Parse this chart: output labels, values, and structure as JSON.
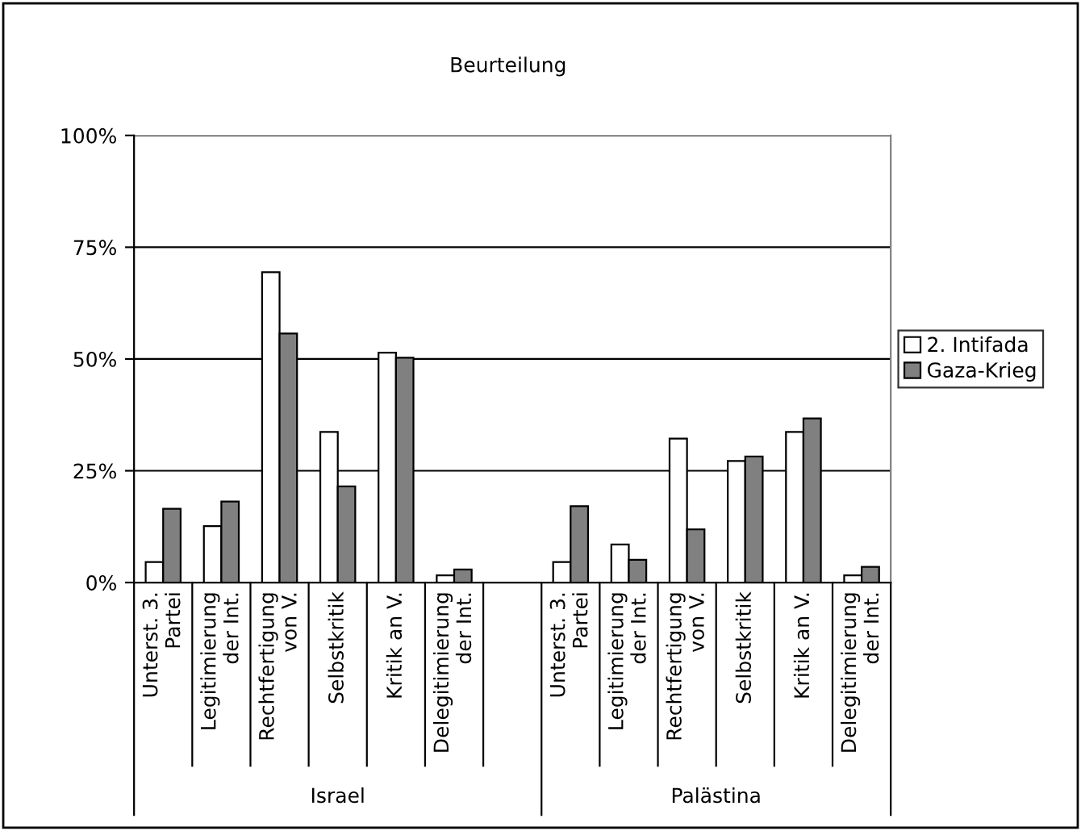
{
  "chart_data": {
    "type": "bar",
    "title": "Beurteilung",
    "categories": [
      "Unterst. 3.\nPartei",
      "Legitimierung\nder Int.",
      "Rechtfertigung\nvon V.",
      "Selbstkritik",
      "Kritik an V.",
      "Delegitimierung\nder Int.",
      null,
      "Unterst. 3.\nPartei",
      "Legitimierung\nder Int.",
      "Rechtfertigung\nvon V.",
      "Selbstkritik",
      "Kritik an V.",
      "Delegitimierung\nder Int."
    ],
    "series": [
      {
        "name": "2. Intifada",
        "color": "#ffffff",
        "values": [
          4.6,
          12.6,
          69.4,
          33.7,
          51.4,
          1.6,
          null,
          4.6,
          8.5,
          32.2,
          27.2,
          33.7,
          1.6
        ]
      },
      {
        "name": "Gaza-Krieg",
        "color": "#808080",
        "values": [
          16.5,
          18.1,
          55.7,
          21.5,
          50.3,
          2.9,
          null,
          17.1,
          5.1,
          11.9,
          28.2,
          36.7,
          3.5
        ]
      }
    ],
    "ylim": [
      0,
      100
    ],
    "yticks": [
      {
        "value": 0,
        "label": "0%"
      },
      {
        "value": 25,
        "label": "25%"
      },
      {
        "value": 50,
        "label": "50%"
      },
      {
        "value": 75,
        "label": "75%"
      },
      {
        "value": 100,
        "label": "100%"
      }
    ],
    "grid": "y",
    "legend": "right",
    "annotations": [
      "Israel",
      "Palästina"
    ]
  }
}
